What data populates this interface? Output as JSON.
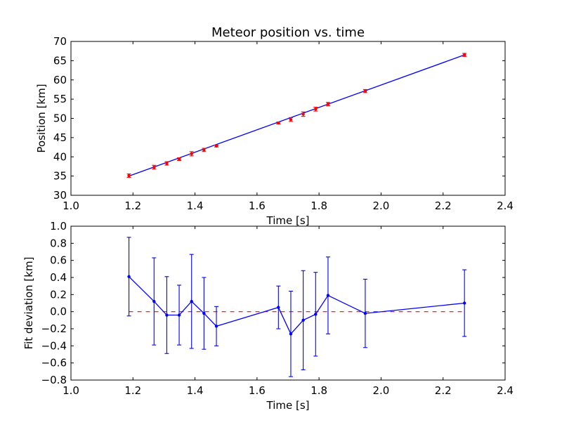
{
  "chart_data": [
    {
      "type": "line",
      "title": "Meteor position vs. time",
      "xlabel": "Time [s]",
      "ylabel": "Position [km]",
      "xlim": [
        1.0,
        2.4
      ],
      "ylim": [
        30,
        70
      ],
      "xticks": [
        "1.0",
        "1.2",
        "1.4",
        "1.6",
        "1.8",
        "2.0",
        "2.2",
        "2.4"
      ],
      "yticks": [
        "30",
        "35",
        "40",
        "45",
        "50",
        "55",
        "60",
        "65",
        "70"
      ],
      "grid": false,
      "series": [
        {
          "kind": "fit-line",
          "color": "#0000ff",
          "x": [
            1.187,
            2.269
          ],
          "y": [
            35.0,
            66.5
          ]
        },
        {
          "kind": "points-with-error",
          "color": "#ff0000",
          "x": [
            1.187,
            1.268,
            1.309,
            1.349,
            1.389,
            1.429,
            1.469,
            1.669,
            1.709,
            1.749,
            1.789,
            1.829,
            1.949,
            2.269
          ],
          "y": [
            35.1,
            37.3,
            38.3,
            39.4,
            40.8,
            41.8,
            42.8,
            48.8,
            49.7,
            51.1,
            52.4,
            53.7,
            57.1,
            66.5
          ],
          "yerr": [
            0.45,
            0.5,
            0.45,
            0.35,
            0.55,
            0.42,
            0.23,
            0.25,
            0.5,
            0.57,
            0.5,
            0.45,
            0.4,
            0.4
          ]
        }
      ]
    },
    {
      "type": "line",
      "title": "",
      "xlabel": "Time [s]",
      "ylabel": "Fit deviation [km]",
      "xlim": [
        1.0,
        2.4
      ],
      "ylim": [
        -0.8,
        1.0
      ],
      "xticks": [
        "1.0",
        "1.2",
        "1.4",
        "1.6",
        "1.8",
        "2.0",
        "2.2",
        "2.4"
      ],
      "yticks": [
        "−0.8",
        "−0.6",
        "−0.4",
        "−0.2",
        "0.0",
        "0.2",
        "0.4",
        "0.6",
        "0.8",
        "1.0"
      ],
      "grid": false,
      "reference_line": {
        "y": 0.0,
        "style": "dashed",
        "color": "#ff0000"
      },
      "series": [
        {
          "kind": "points-with-error",
          "color": "#0000ff",
          "x": [
            1.187,
            1.268,
            1.309,
            1.349,
            1.389,
            1.429,
            1.469,
            1.669,
            1.709,
            1.749,
            1.789,
            1.829,
            1.949,
            2.269
          ],
          "y": [
            0.41,
            0.12,
            -0.04,
            -0.04,
            0.12,
            -0.02,
            -0.17,
            0.05,
            -0.26,
            -0.1,
            -0.03,
            0.19,
            -0.02,
            0.1
          ],
          "yerr": [
            0.46,
            0.51,
            0.45,
            0.35,
            0.55,
            0.42,
            0.23,
            0.25,
            0.5,
            0.58,
            0.49,
            0.45,
            0.4,
            0.39
          ]
        }
      ]
    }
  ]
}
